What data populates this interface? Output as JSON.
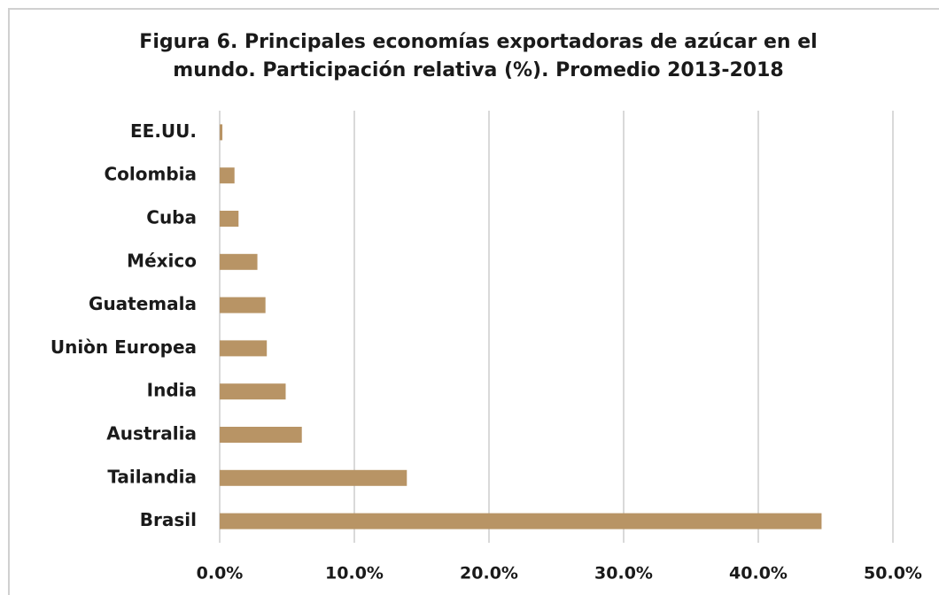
{
  "chart_data": {
    "type": "barh",
    "title": [
      "Figura 6. Principales economías exportadoras de azúcar en el",
      "mundo. Participación relativa (%). Promedio 2013-2018"
    ],
    "categories": [
      "EE.UU.",
      "Colombia",
      "Cuba",
      "México",
      "Guatemala",
      "Uniòn Europea",
      "India",
      "Australia",
      "Tailandia",
      "Brasil"
    ],
    "values": [
      0.2,
      1.1,
      1.4,
      2.8,
      3.4,
      3.5,
      4.9,
      6.1,
      13.9,
      44.7
    ],
    "color": "#b89465",
    "xlim": [
      0,
      50
    ],
    "xticks": [
      {
        "value": 0,
        "label": "0.0%"
      },
      {
        "value": 10,
        "label": "10.0%"
      },
      {
        "value": 20,
        "label": "20.0%"
      },
      {
        "value": 30,
        "label": "30.0%"
      },
      {
        "value": 40,
        "label": "40.0%"
      },
      {
        "value": 50,
        "label": "50.0%"
      }
    ],
    "grid": true
  }
}
